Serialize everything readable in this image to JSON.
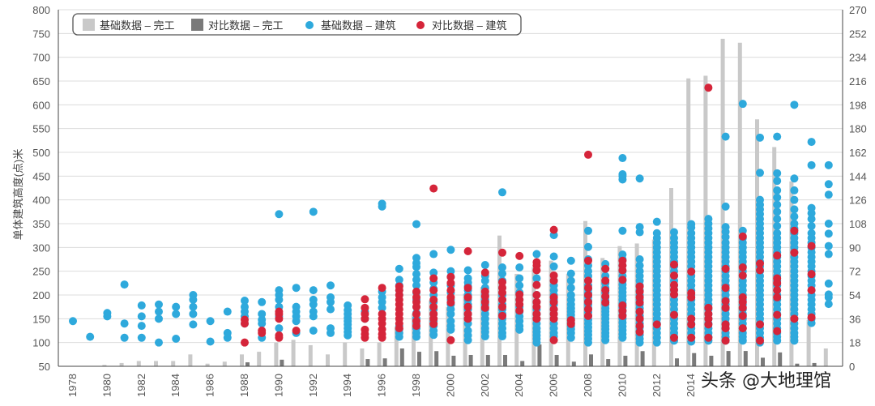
{
  "chart_data": {
    "type": "bar+scatter",
    "title": "",
    "xlabel": "",
    "ylabel": "单体建筑高度(点)米",
    "ylim": [
      50,
      800
    ],
    "yticks": [
      50,
      100,
      150,
      200,
      250,
      300,
      350,
      400,
      450,
      500,
      550,
      600,
      650,
      700,
      750,
      800
    ],
    "y2lim": [
      0,
      270
    ],
    "y2ticks": [
      0,
      18,
      36,
      54,
      72,
      90,
      108,
      126,
      144,
      162,
      180,
      198,
      216,
      234,
      252,
      270
    ],
    "xticks": [
      "1978",
      "1980",
      "1982",
      "1984",
      "1986",
      "1988",
      "1990",
      "1992",
      "1994",
      "1996",
      "1998",
      "2000",
      "2002",
      "2004",
      "2006",
      "2008",
      "2010",
      "2012",
      "2014"
    ],
    "grid": true,
    "legend_position": "top-left",
    "legend": [
      "基础数据 – 完工",
      "对比数据 – 完工",
      "基础数据 – 建筑",
      "对比数据 – 建筑"
    ],
    "colors": {
      "base_complete": "#c9c9c9",
      "compare_complete": "#7a7a7a",
      "base_building": "#2ea9dc",
      "compare_building": "#d5253a"
    },
    "years": [
      1978,
      1979,
      1980,
      1981,
      1982,
      1983,
      1984,
      1985,
      1986,
      1987,
      1988,
      1989,
      1990,
      1991,
      1992,
      1993,
      1994,
      1995,
      1996,
      1997,
      1998,
      1999,
      2000,
      2001,
      2002,
      2003,
      2004,
      2005,
      2006,
      2007,
      2008,
      2009,
      2010,
      2011,
      2012,
      2013,
      2014,
      2015,
      2016,
      2017,
      2018,
      2019,
      2020,
      2021,
      2022
    ],
    "bars_base_complete": [
      0,
      0,
      1,
      2.5,
      4,
      4,
      4,
      9,
      2,
      3.5,
      9,
      11,
      18,
      20,
      16,
      9,
      18,
      13.5,
      18,
      30,
      40,
      50,
      45,
      55,
      60,
      99,
      70,
      75,
      80,
      70,
      110,
      82,
      91,
      93,
      96,
      135,
      218,
      220,
      248,
      245,
      187,
      166,
      140,
      35,
      13.5
    ],
    "bars_compare_complete": [
      0,
      0,
      0,
      0,
      0,
      0,
      0,
      0,
      0,
      0,
      3,
      0,
      5,
      0,
      0,
      0,
      0,
      5.5,
      6,
      13.5,
      11,
      11.5,
      8,
      8.6,
      8.6,
      8.6,
      4,
      16.5,
      8.6,
      3.5,
      9,
      5.5,
      8,
      11.5,
      0,
      6,
      10,
      8,
      11.6,
      11.6,
      6.5,
      10.5,
      2,
      2.5,
      0
    ],
    "scatter_base_building": {
      "1978": [
        145
      ],
      "1979": [
        112
      ],
      "1980": [
        155,
        162
      ],
      "1981": [
        110,
        140,
        222
      ],
      "1982": [
        110,
        135,
        155,
        178
      ],
      "1983": [
        100,
        150,
        165,
        180
      ],
      "1984": [
        108,
        160,
        175
      ],
      "1985": [
        138,
        160,
        175,
        190,
        200
      ],
      "1986": [
        102,
        145
      ],
      "1987": [
        110,
        120,
        165
      ],
      "1988": [
        140,
        155,
        165,
        175,
        188
      ],
      "1989": [
        110,
        140,
        148,
        160,
        185
      ],
      "1990": [
        130,
        155,
        175,
        190,
        200,
        210,
        370
      ],
      "1991": [
        120,
        145,
        155,
        165,
        175,
        215
      ],
      "1992": [
        125,
        155,
        165,
        180,
        190,
        210,
        375
      ],
      "1993": [
        120,
        130,
        170,
        185,
        195,
        220
      ],
      "1994": [
        115,
        122,
        130,
        138,
        145,
        152,
        160,
        168,
        178
      ],
      "1995": [
        150,
        165
      ],
      "1996": [
        173,
        185,
        195,
        207,
        386,
        392
      ],
      "1997": [
        112,
        120,
        128,
        135,
        200,
        210,
        220,
        232,
        255
      ],
      "1998": [
        112,
        120,
        130,
        140,
        150,
        162,
        175,
        190,
        205,
        220,
        232,
        244,
        259,
        267,
        278,
        349
      ],
      "1999": [
        116,
        125,
        135,
        145,
        160,
        170,
        185,
        200,
        213,
        226,
        247,
        286
      ],
      "2000": [
        127,
        135,
        145,
        160,
        170,
        180,
        190,
        205,
        220,
        238,
        250,
        295
      ],
      "2001": [
        105,
        115,
        125,
        140,
        150,
        160,
        170,
        180,
        190,
        200,
        210,
        218,
        226,
        235,
        252
      ],
      "2002": [
        113,
        122,
        130,
        140,
        150,
        160,
        170,
        180,
        190,
        200,
        215,
        230,
        240,
        263
      ],
      "2003": [
        113,
        120,
        130,
        140,
        150,
        160,
        170,
        180,
        190,
        200,
        215,
        230,
        245,
        258,
        416
      ],
      "2004": [
        127,
        135,
        145,
        155,
        165,
        175,
        190,
        205,
        220,
        235,
        258
      ],
      "2005": [
        100,
        108,
        115,
        122,
        130,
        140,
        150,
        160,
        170,
        185,
        200,
        235,
        286
      ],
      "2006": [
        113,
        120,
        130,
        140,
        150,
        160,
        170,
        180,
        190,
        200,
        210,
        220,
        230,
        260,
        281,
        326
      ],
      "2007": [
        110,
        120,
        128,
        135,
        142,
        150,
        158,
        165,
        172,
        180,
        190,
        200,
        215,
        230,
        245,
        272
      ],
      "2008": [
        100,
        108,
        116,
        124,
        132,
        140,
        148,
        156,
        164,
        172,
        180,
        188,
        196,
        204,
        212,
        220,
        230,
        240,
        250,
        262,
        275,
        301,
        335
      ],
      "2009": [
        105,
        113,
        120,
        128,
        135,
        142,
        150,
        158,
        165,
        172,
        180,
        188,
        195,
        205,
        215,
        225,
        240,
        255,
        265
      ],
      "2010": [
        110,
        118,
        126,
        134,
        142,
        150,
        158,
        166,
        174,
        182,
        190,
        198,
        206,
        214,
        222,
        230,
        240,
        250,
        262,
        275,
        285,
        335,
        443,
        450,
        454,
        488
      ],
      "2011": [
        100,
        108,
        116,
        124,
        132,
        140,
        148,
        156,
        164,
        172,
        180,
        190,
        200,
        210,
        220,
        230,
        240,
        250,
        262,
        275,
        332,
        343,
        445
      ],
      "2012": [
        100,
        110,
        120,
        130,
        140,
        150,
        160,
        170,
        180,
        190,
        200,
        210,
        220,
        230,
        240,
        250,
        260,
        270,
        280,
        290,
        300,
        310,
        320,
        330,
        354
      ],
      "2013": [
        104,
        112,
        120,
        130,
        140,
        150,
        160,
        170,
        180,
        190,
        200,
        210,
        220,
        230,
        240,
        250,
        260,
        270,
        280,
        290,
        300,
        310,
        320,
        332
      ],
      "2014": [
        102,
        110,
        120,
        130,
        140,
        150,
        160,
        170,
        180,
        190,
        200,
        210,
        220,
        230,
        240,
        250,
        260,
        270,
        280,
        290,
        300,
        310,
        320,
        330,
        342,
        349
      ],
      "2015": [
        104,
        112,
        120,
        130,
        140,
        150,
        160,
        170,
        180,
        190,
        200,
        210,
        220,
        230,
        240,
        250,
        260,
        270,
        280,
        290,
        300,
        310,
        320,
        330,
        340,
        350,
        360
      ],
      "2016": [
        104,
        112,
        120,
        130,
        140,
        150,
        160,
        170,
        180,
        190,
        200,
        210,
        220,
        230,
        240,
        250,
        260,
        270,
        280,
        290,
        300,
        310,
        322,
        333,
        343,
        386,
        533
      ],
      "2017": [
        104,
        112,
        120,
        130,
        140,
        150,
        160,
        170,
        180,
        190,
        200,
        210,
        220,
        230,
        240,
        250,
        260,
        270,
        280,
        290,
        300,
        310,
        320,
        335,
        602
      ],
      "2018": [
        100,
        110,
        120,
        130,
        140,
        150,
        160,
        170,
        180,
        190,
        200,
        210,
        220,
        230,
        240,
        250,
        260,
        270,
        280,
        290,
        300,
        310,
        320,
        330,
        340,
        350,
        360,
        370,
        380,
        390,
        400,
        457,
        531
      ],
      "2019": [
        104,
        112,
        120,
        130,
        140,
        150,
        160,
        170,
        180,
        190,
        200,
        210,
        220,
        230,
        240,
        250,
        260,
        270,
        280,
        290,
        300,
        310,
        320,
        330,
        345,
        360,
        375,
        390,
        405,
        420,
        440,
        456,
        533
      ],
      "2020": [
        104,
        112,
        120,
        130,
        140,
        150,
        160,
        170,
        180,
        190,
        200,
        210,
        220,
        230,
        240,
        250,
        260,
        270,
        280,
        290,
        300,
        310,
        320,
        330,
        340,
        350,
        365,
        380,
        400,
        420,
        445,
        600
      ],
      "2021": [
        141,
        150,
        160,
        170,
        180,
        190,
        200,
        210,
        220,
        230,
        240,
        250,
        260,
        270,
        280,
        290,
        300,
        310,
        320,
        330,
        345,
        360,
        372,
        383,
        473,
        522
      ],
      "2022": [
        181,
        195,
        201,
        224,
        286,
        303,
        329,
        350,
        411,
        433,
        473
      ]
    },
    "scatter_compare_building": {
      "1988": [
        100,
        140,
        148
      ],
      "1989": [
        120,
        125
      ],
      "1990": [
        110,
        115,
        150,
        160,
        165
      ],
      "1991": [
        125
      ],
      "1995": [
        110,
        118,
        127,
        150,
        160,
        173,
        191
      ],
      "1996": [
        110,
        118,
        128,
        140,
        150,
        160,
        215
      ],
      "1997": [
        130,
        140,
        150,
        160,
        170,
        180,
        190,
        200,
        210,
        218
      ],
      "1998": [
        135,
        145,
        160,
        175,
        185,
        195,
        207
      ],
      "1999": [
        139,
        150,
        160,
        175,
        190,
        210,
        235,
        424
      ],
      "2000": [
        105,
        184,
        195,
        210,
        225,
        238
      ],
      "2001": [
        150,
        160,
        175,
        195,
        215,
        292
      ],
      "2002": [
        173,
        185,
        197,
        207,
        247
      ],
      "2003": [
        156,
        175,
        190,
        205,
        215,
        227,
        289
      ],
      "2004": [
        167,
        180,
        190,
        201,
        282
      ],
      "2005": [
        150,
        160,
        175,
        185,
        200,
        221,
        252,
        262,
        269
      ],
      "2006": [
        105,
        150,
        160,
        170,
        185,
        195,
        230,
        241,
        337
      ],
      "2007": [
        139,
        147
      ],
      "2008": [
        156,
        170,
        185,
        200,
        215,
        230,
        272,
        495
      ],
      "2009": [
        184,
        197,
        210,
        230,
        255
      ],
      "2010": [
        156,
        167,
        178,
        232,
        252,
        262,
        272
      ],
      "2011": [
        122,
        135,
        150,
        165,
        184,
        195,
        207,
        218
      ],
      "2012": [
        138
      ],
      "2013": [
        110,
        158,
        201,
        211,
        221,
        241,
        264
      ],
      "2014": [
        110,
        138,
        150,
        195,
        204,
        249
      ],
      "2015": [
        110,
        138,
        150,
        160,
        173,
        636
      ],
      "2016": [
        104,
        130,
        138,
        173,
        187,
        215,
        255
      ],
      "2017": [
        130,
        156,
        173,
        185,
        195,
        241,
        258,
        323
      ],
      "2018": [
        104,
        138,
        252,
        266
      ],
      "2019": [
        124,
        158,
        195,
        210,
        225,
        235,
        283
      ],
      "2020": [
        150,
        289,
        335
      ],
      "2021": [
        153,
        210,
        244,
        303
      ]
    }
  },
  "watermark": "头条 @大地理馆"
}
